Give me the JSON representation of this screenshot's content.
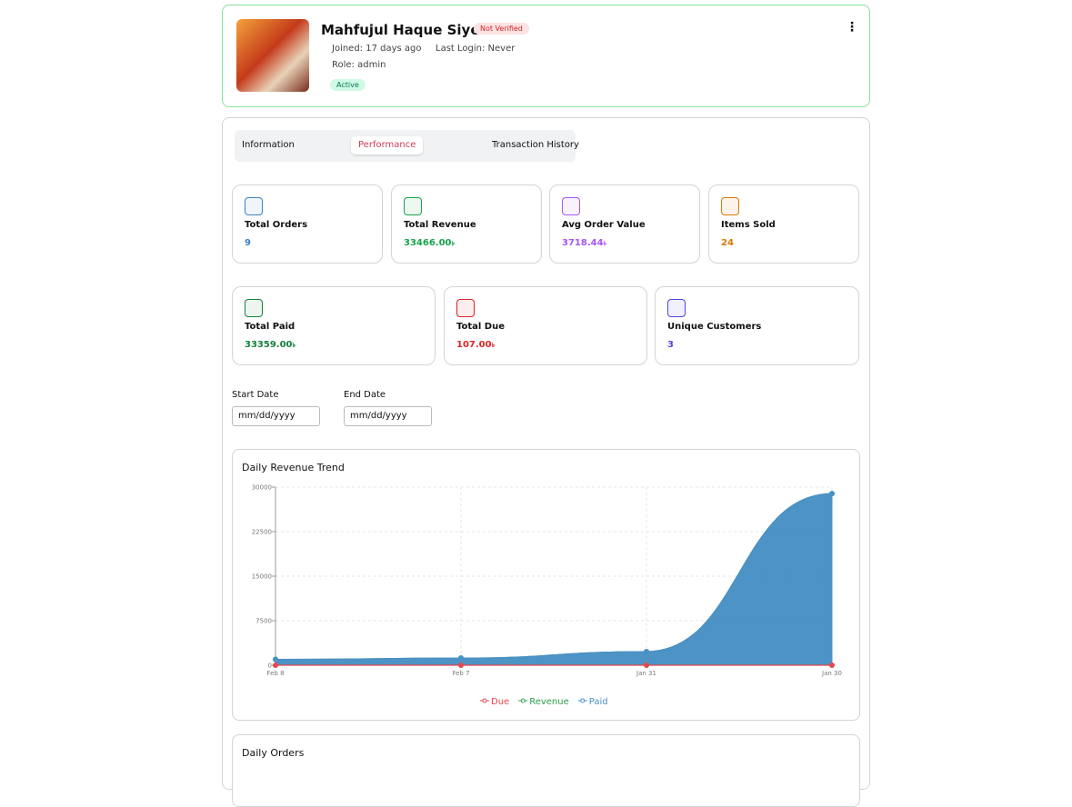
{
  "profile": {
    "name": "Mahfujul Haque Siyem",
    "badge": "Not Verified",
    "joined": "Joined: 17 days ago",
    "last_login": "Last Login: Never",
    "role": "Role: admin",
    "status": "Active"
  },
  "tabs": [
    "Information",
    "Performance",
    "Transaction History"
  ],
  "stats": [
    [
      {
        "label": "Total Orders",
        "value": "9",
        "color": "#3b82c4"
      },
      {
        "label": "Total Revenue",
        "value": "33466.00",
        "unit": "৳",
        "color": "#16a34a"
      },
      {
        "label": "Avg Order Value",
        "value": "3718.44",
        "unit": "৳",
        "color": "#a855f7"
      },
      {
        "label": "Items Sold",
        "value": "24",
        "color": "#d97706"
      }
    ],
    [
      {
        "label": "Total Paid",
        "value": "33359.00",
        "unit": "৳",
        "color": "#15803d"
      },
      {
        "label": "Total Due",
        "value": "107.00",
        "unit": "৳",
        "color": "#dc2626"
      },
      {
        "label": "Unique Customers",
        "value": "3",
        "color": "#4f46e5"
      }
    ]
  ],
  "filters": [
    {
      "label": "Start Date",
      "placeholder": "mm/dd/yyyy"
    },
    {
      "label": "End Date",
      "placeholder": "mm/dd/yyyy"
    }
  ],
  "chart_data": [
    {
      "type": "area",
      "title": "Daily Revenue Trend",
      "categories": [
        "Feb 8",
        "Feb 7",
        "Jan 31",
        "Jan 30"
      ],
      "series": [
        {
          "name": "Due",
          "color": "#e5484d",
          "values": [
            0,
            0,
            0,
            0
          ]
        },
        {
          "name": "Revenue",
          "color": "#2e9d4a",
          "values": [
            1000,
            1200,
            2300,
            28900
          ]
        },
        {
          "name": "Paid",
          "color": "#4a90c8",
          "values": [
            1000,
            1200,
            2300,
            28900
          ]
        }
      ],
      "ylim": [
        0,
        30000
      ],
      "yticks": [
        0,
        7500,
        15000,
        22500,
        30000
      ],
      "grid": true
    },
    {
      "type": "line",
      "title": "Daily Orders"
    }
  ]
}
